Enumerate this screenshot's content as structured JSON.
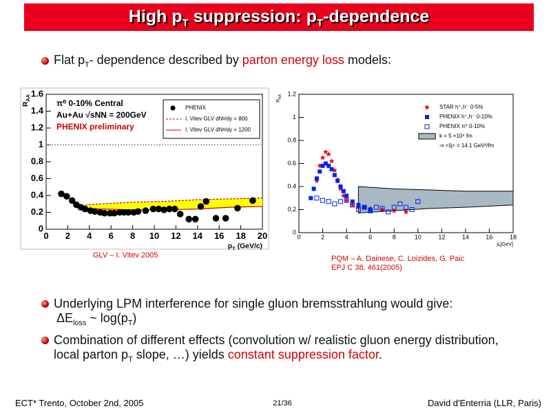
{
  "header": {
    "title": [
      {
        "text": "High p"
      },
      {
        "text": "T",
        "style": "sub"
      },
      {
        "text": " suppression: p"
      },
      {
        "text": "T",
        "style": "sub"
      },
      {
        "text": "-dependence"
      }
    ]
  },
  "bullets": [
    [
      {
        "text": "Flat p"
      },
      {
        "text": "T",
        "style": "sub"
      },
      {
        "text": "- dependence described by "
      },
      {
        "text": "parton energy loss",
        "style": "highlight"
      },
      {
        "text": " models:"
      }
    ],
    [
      {
        "text": "Underlying LPM interference for single gluon bremsstrahlung would give:"
      },
      {
        "text": "ΔE",
        "style": "break"
      },
      {
        "text": "loss",
        "style": "sub"
      },
      {
        "text": " ~ log(p"
      },
      {
        "text": "T",
        "style": "sub"
      },
      {
        "text": ")"
      }
    ],
    [
      {
        "text": "Combination of different effects (convolution w/ realistic gluon energy distribution, local parton p"
      },
      {
        "text": "T",
        "style": "sub"
      },
      {
        "text": " slope, …) yields "
      },
      {
        "text": "constant suppression factor",
        "style": "highlight"
      },
      {
        "text": "."
      }
    ]
  ],
  "captions": [
    "GLV – I. Vitev 2005",
    "PQM – A. Dainese, C. Loizides, G. Paic",
    "EPJ C 38, 461(2005)"
  ],
  "footer": {
    "left": "ECT* Trento, October 2nd, 2005",
    "center": "21/36",
    "right": "David d'Enterria (LLR, Paris)"
  },
  "chart_data": [
    {
      "type": "scatter",
      "xlabel": [
        {
          "text": "p"
        },
        {
          "text": "T",
          "style": "sub"
        },
        {
          "text": " (GeV/c)"
        }
      ],
      "ylabel": [
        {
          "text": "R"
        },
        {
          "text": "AA",
          "style": "sub"
        }
      ],
      "xlim": [
        0,
        20
      ],
      "xticks": [
        0,
        2,
        4,
        6,
        8,
        10,
        12,
        14,
        16,
        18,
        20
      ],
      "ylim": [
        0,
        1.6
      ],
      "yticks": [
        0,
        0.2,
        0.4,
        0.6,
        0.8,
        1,
        1.2,
        1.4,
        1.6
      ],
      "reference_line": 1,
      "legend": "upper right",
      "band_color": "#ffff00",
      "annotations": [
        {
          "text": "π⁰ 0-10% Central",
          "color": "#000000"
        },
        {
          "text": "Au+Au √sNN = 200GeV",
          "color": "#000000"
        },
        {
          "text": "PHENIX preliminary",
          "color": "#cc0000"
        }
      ],
      "series": [
        {
          "name": "PHENIX",
          "marker": "circle",
          "color": "#000000",
          "x": [
            1.4,
            1.9,
            2.4,
            2.8,
            3.2,
            3.6,
            4.1,
            4.5,
            5.0,
            5.4,
            5.9,
            6.3,
            6.8,
            7.2,
            7.6,
            8.1,
            8.5,
            9.2,
            9.9,
            10.4,
            10.9,
            11.4,
            11.9,
            12.4,
            13.2,
            13.8,
            14.3,
            14.8,
            15.7,
            16.6,
            17.7,
            19.1
          ],
          "values": [
            0.42,
            0.39,
            0.34,
            0.29,
            0.26,
            0.24,
            0.22,
            0.21,
            0.2,
            0.19,
            0.19,
            0.19,
            0.2,
            0.2,
            0.2,
            0.2,
            0.21,
            0.22,
            0.24,
            0.24,
            0.23,
            0.24,
            0.24,
            0.18,
            0.12,
            0.12,
            0.27,
            0.33,
            0.13,
            0.13,
            0.25,
            0.34
          ]
        },
        {
          "name": "I. Vitev GLV dNᵍ/dy = 800",
          "line": "dashed",
          "color": "#cc0000",
          "x": [
            3,
            5,
            8,
            11,
            14,
            17,
            20
          ],
          "values": [
            0.28,
            0.3,
            0.32,
            0.33,
            0.35,
            0.36,
            0.37
          ]
        },
        {
          "name": "I. Vitev GLV dNᵍ/dy = 1200",
          "line": "solid",
          "color": "#cc0000",
          "x": [
            3,
            5,
            8,
            11,
            14,
            17,
            20
          ],
          "values": [
            0.25,
            0.24,
            0.23,
            0.23,
            0.24,
            0.26,
            0.27
          ]
        }
      ]
    },
    {
      "type": "scatter",
      "xlabel": [
        {
          "text": "p"
        },
        {
          "text": "t",
          "style": "sub"
        },
        {
          "text": "[GeV]"
        }
      ],
      "ylabel": [
        {
          "text": "R"
        },
        {
          "text": "AA",
          "style": "sub"
        }
      ],
      "xlim": [
        0,
        18
      ],
      "xticks": [
        0,
        2,
        4,
        6,
        8,
        10,
        12,
        14,
        16,
        18
      ],
      "ylim": [
        0,
        1.2
      ],
      "yticks": [
        0,
        0.2,
        0.4,
        0.6,
        0.8,
        1,
        1.2
      ],
      "legend": "upper right",
      "annotations": [
        {
          "text": "⇒ <q̂> = 14.1 GeV²/fm",
          "color": "#000000"
        }
      ],
      "series": [
        {
          "name": "STAR h⁺,h⁻ 0-5%",
          "marker": "star",
          "color": "#ee0000",
          "x": [
            1.5,
            1.75,
            2,
            2.25,
            2.5,
            2.75,
            3,
            3.25,
            3.5,
            3.75,
            4,
            4.5,
            5,
            5.5,
            6,
            7,
            8,
            9
          ],
          "values": [
            0.45,
            0.58,
            0.65,
            0.7,
            0.68,
            0.62,
            0.54,
            0.46,
            0.38,
            0.32,
            0.28,
            0.24,
            0.22,
            0.22,
            0.21,
            0.2,
            0.19,
            0.18
          ]
        },
        {
          "name": "PHENIX h⁺,h⁻ 0-10%",
          "marker": "square",
          "color": "#0022ee",
          "x": [
            1,
            1.25,
            1.5,
            1.75,
            2,
            2.25,
            2.5,
            2.75,
            3,
            3.25,
            3.5,
            3.75,
            4,
            4.5,
            5,
            5.5,
            6
          ],
          "values": [
            0.3,
            0.38,
            0.47,
            0.53,
            0.58,
            0.6,
            0.58,
            0.55,
            0.5,
            0.45,
            0.4,
            0.36,
            0.32,
            0.27,
            0.24,
            0.22,
            0.2
          ]
        },
        {
          "name": "PHENIX π⁰ 0-10%",
          "marker": "open-square",
          "color": "#0022ee",
          "x": [
            1.5,
            2,
            2.5,
            3,
            3.5,
            4,
            4.5,
            5,
            5.5,
            6,
            6.5,
            7,
            7.5,
            8,
            8.5,
            9,
            9.5,
            10
          ],
          "values": [
            0.3,
            0.28,
            0.27,
            0.25,
            0.27,
            0.28,
            0.24,
            0.2,
            0.22,
            0.19,
            0.22,
            0.21,
            0.18,
            0.22,
            0.25,
            0.22,
            0.2,
            0.27
          ]
        },
        {
          "name": "k = 5 ×10⁶ fm",
          "band": true,
          "color": "#a9b9c4",
          "x": [
            5,
            8,
            11,
            14,
            18
          ],
          "upper": [
            0.4,
            0.38,
            0.37,
            0.36,
            0.36
          ],
          "lower": [
            0.17,
            0.19,
            0.21,
            0.22,
            0.24
          ]
        }
      ]
    }
  ]
}
